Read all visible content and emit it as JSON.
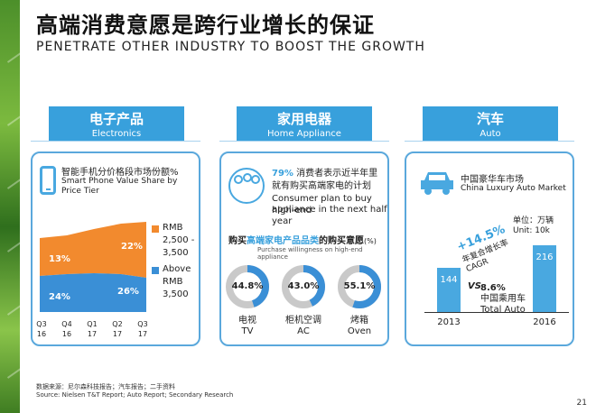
{
  "title": {
    "cn": "高端消费意愿是跨行业增长的保证",
    "en": "PENETRATE OTHER INDUSTRY TO BOOST THE GROWTH"
  },
  "panels": {
    "electronics": {
      "header_cn": "电子产品",
      "header_en": "Electronics",
      "title_cn": "智能手机分价格段市场份额%",
      "title_en": "Smart Phone Value Share by Price Tier",
      "legend": [
        {
          "label": "RMB 2,500 - 3,500",
          "color": "#f28a2e"
        },
        {
          "label": "Above RMB 3,500",
          "color": "#3a8fd6"
        }
      ],
      "x_ticks": [
        [
          "Q3",
          "16"
        ],
        [
          "Q4",
          "16"
        ],
        [
          "Q1",
          "17"
        ],
        [
          "Q2",
          "17"
        ],
        [
          "Q3",
          "17"
        ]
      ],
      "labels": {
        "mid_start": "13%",
        "mid_end": "22%",
        "high_start": "24%",
        "high_end": "26%"
      }
    },
    "home": {
      "header_cn": "家用电器",
      "header_en": "Home Appliance",
      "pct": "79%",
      "line1": "消费者表示近半年里",
      "line2": "就有购买高端家电的计划",
      "line3": "Consumer plan to buy high-end",
      "line4": "appliance in the next half year",
      "q_cn_pre": "购买",
      "q_cn_hl": "高端家电产品品类",
      "q_cn_post": "的购买意愿",
      "q_cn_unit": "(%)",
      "q_en": "Purchase willingness on high-end appliance",
      "donuts": [
        {
          "value": "44.8%",
          "label_cn": "电视",
          "label_en": "TV",
          "pct": 44.8
        },
        {
          "value": "43.0%",
          "label_cn": "柜机空调",
          "label_en": "AC",
          "pct": 43.0
        },
        {
          "value": "55.1%",
          "label_cn": "烤箱",
          "label_en": "Oven",
          "pct": 55.1
        }
      ]
    },
    "auto": {
      "header_cn": "汽车",
      "header_en": "Auto",
      "title_cn": "中国豪华车市场",
      "title_en": "China Luxury Auto Market",
      "unit_cn": "单位：万辆",
      "unit_en": "Unit: 10k",
      "cagr_value": "+14.5%",
      "cagr_cn": "年复合增长率",
      "cagr_en": "CAGR",
      "vs": "VS",
      "total_pct": "8.6%",
      "total_cn": "中国乘用车",
      "total_en": "Total Auto",
      "bars": [
        {
          "year": "2013",
          "value": "144",
          "num": 144
        },
        {
          "year": "2016",
          "value": "216",
          "num": 216
        }
      ]
    }
  },
  "source": {
    "cn": "数据来源：尼尔森科技报告；汽车报告；二手资料",
    "en": "Source: Nielsen T&T Report; Auto Report; Secondary Research"
  },
  "page_number": "21"
}
